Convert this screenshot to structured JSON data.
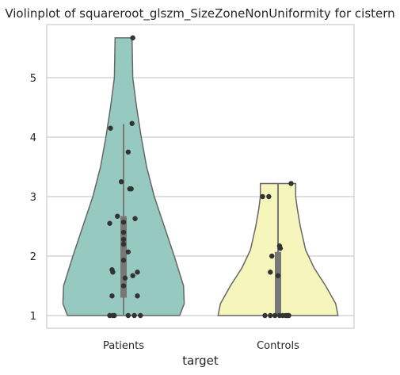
{
  "chart_data": {
    "type": "violin",
    "title": "Violinplot of squareroot_glszm_SizeZoneNonUniformity for cistern",
    "xlabel": "target",
    "ylabel": "",
    "categories": [
      "Patients",
      "Controls"
    ],
    "ylim": [
      0.8,
      5.9
    ],
    "yticks": [
      1,
      2,
      3,
      4,
      5
    ],
    "grid": "horizontal",
    "colors": {
      "Patients": "#96cac1",
      "Controls": "#f6f6bc",
      "outline": "#666666",
      "points": "#333333",
      "box": "#777777",
      "median": "#ffffff",
      "grid": "#cccccc"
    },
    "violins": [
      {
        "name": "Patients",
        "min": 1.0,
        "max": 5.67,
        "q1": 1.3,
        "median": 1.93,
        "q3": 2.67,
        "whisker_low": 1.0,
        "whisker_high": 4.22,
        "density": [
          [
            1.0,
            0.73
          ],
          [
            1.2,
            0.79
          ],
          [
            1.5,
            0.78
          ],
          [
            2.0,
            0.66
          ],
          [
            2.5,
            0.53
          ],
          [
            3.0,
            0.4
          ],
          [
            3.5,
            0.3
          ],
          [
            4.0,
            0.23
          ],
          [
            4.5,
            0.17
          ],
          [
            5.0,
            0.12
          ],
          [
            5.67,
            0.11
          ]
        ],
        "points": [
          [
            1.0,
            -0.18
          ],
          [
            1.0,
            -0.14
          ],
          [
            1.0,
            -0.12
          ],
          [
            1.0,
            0.14
          ],
          [
            1.0,
            0.22
          ],
          [
            1.0,
            0.06
          ],
          [
            1.33,
            -0.15
          ],
          [
            1.33,
            0.18
          ],
          [
            1.5,
            0.0
          ],
          [
            1.63,
            0.02
          ],
          [
            1.67,
            0.12
          ],
          [
            1.73,
            0.18
          ],
          [
            1.73,
            -0.14
          ],
          [
            1.77,
            -0.15
          ],
          [
            1.93,
            0.0
          ],
          [
            2.07,
            0.06
          ],
          [
            2.2,
            0.0
          ],
          [
            2.28,
            0.0
          ],
          [
            2.4,
            0.0
          ],
          [
            2.55,
            -0.18
          ],
          [
            2.57,
            0.0
          ],
          [
            2.63,
            0.15
          ],
          [
            2.67,
            -0.08
          ],
          [
            3.13,
            0.08
          ],
          [
            3.13,
            0.1
          ],
          [
            3.25,
            -0.03
          ],
          [
            3.75,
            0.06
          ],
          [
            4.15,
            -0.17
          ],
          [
            4.23,
            0.11
          ],
          [
            5.67,
            0.12
          ]
        ]
      },
      {
        "name": "Controls",
        "min": 1.0,
        "max": 3.22,
        "q1": 1.0,
        "median": 1.0,
        "q3": 2.07,
        "whisker_low": 1.0,
        "whisker_high": 3.22,
        "density": [
          [
            1.0,
            0.78
          ],
          [
            1.2,
            0.75
          ],
          [
            1.5,
            0.62
          ],
          [
            1.8,
            0.47
          ],
          [
            2.1,
            0.36
          ],
          [
            2.5,
            0.29
          ],
          [
            2.8,
            0.25
          ],
          [
            3.0,
            0.23
          ],
          [
            3.22,
            0.23
          ]
        ],
        "points": [
          [
            1.0,
            -0.17
          ],
          [
            1.0,
            -0.1
          ],
          [
            1.0,
            -0.04
          ],
          [
            1.0,
            0.02
          ],
          [
            1.0,
            0.06
          ],
          [
            1.0,
            0.1
          ],
          [
            1.0,
            0.12
          ],
          [
            1.0,
            0.14
          ],
          [
            1.67,
            0.0
          ],
          [
            1.73,
            -0.1
          ],
          [
            2.0,
            -0.08
          ],
          [
            2.13,
            0.03
          ],
          [
            2.17,
            0.02
          ],
          [
            3.0,
            -0.2
          ],
          [
            3.0,
            -0.12
          ],
          [
            3.22,
            0.17
          ]
        ]
      }
    ]
  }
}
